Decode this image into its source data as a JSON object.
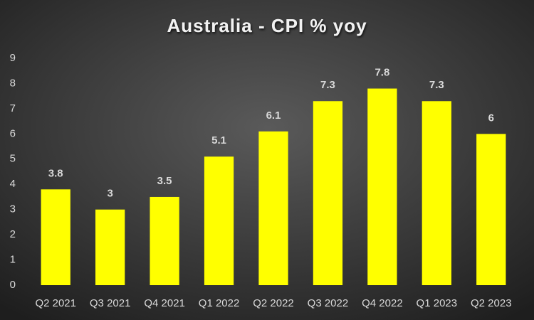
{
  "chart_data": {
    "type": "bar",
    "title": "Australia - CPI % yoy",
    "categories": [
      "Q2 2021",
      "Q3 2021",
      "Q4 2021",
      "Q1 2022",
      "Q2 2022",
      "Q3 2022",
      "Q4 2022",
      "Q1 2023",
      "Q2 2023"
    ],
    "values": [
      3.8,
      3,
      3.5,
      5.1,
      6.1,
      7.3,
      7.8,
      7.3,
      6
    ],
    "color": "#ffff00",
    "ylim": [
      0,
      9
    ],
    "yticks": [
      0,
      1,
      2,
      3,
      4,
      5,
      6,
      7,
      8,
      9
    ],
    "grid": false
  }
}
